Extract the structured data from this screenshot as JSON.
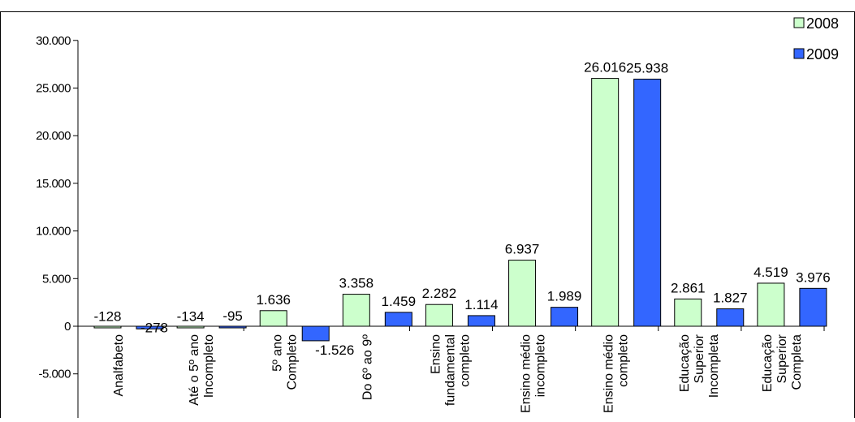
{
  "chart_data": {
    "type": "bar",
    "title": "",
    "xlabel": "",
    "ylabel": "",
    "ylim": [
      -5000,
      30000
    ],
    "y_ticks": [
      "-5.000",
      "0",
      "5.000",
      "10.000",
      "15.000",
      "20.000",
      "25.000",
      "30.000"
    ],
    "y_tick_values": [
      -5000,
      0,
      5000,
      10000,
      15000,
      20000,
      25000,
      30000
    ],
    "categories": [
      "Analfabeto",
      "Até o 5º ano Incompleto",
      "5º ano Completo",
      "Do 6º ao 9º",
      "Ensino fundamental completo",
      "Ensino médio incompleto",
      "Ensino médio completo",
      "Educação Superior Incompleta",
      "Educação Superior Completa"
    ],
    "category_lines": [
      [
        "Analfabeto"
      ],
      [
        "Até o 5º ano",
        "Incompleto"
      ],
      [
        "5º ano",
        "Completo"
      ],
      [
        "Do 6º ao 9º"
      ],
      [
        "Ensino",
        "fundamental",
        "completo"
      ],
      [
        "Ensino médio",
        "incompleto"
      ],
      [
        "Ensino médio",
        "completo"
      ],
      [
        "Educação",
        "Superior",
        "Incompleta"
      ],
      [
        "Educação",
        "Superior",
        "Completa"
      ]
    ],
    "series": [
      {
        "name": "2008",
        "color": "#ccffcc",
        "values": [
          -128,
          -134,
          1636,
          3358,
          2282,
          6937,
          26016,
          2861,
          4519
        ],
        "labels": [
          "-128",
          "-134",
          "1.636",
          "3.358",
          "2.282",
          "6.937",
          "26.016",
          "2.861",
          "4.519"
        ]
      },
      {
        "name": "2009",
        "color": "#3366ff",
        "values": [
          -278,
          -95,
          -1526,
          1459,
          1114,
          1989,
          25938,
          1827,
          3976
        ],
        "labels": [
          "-278",
          "-95",
          "-1.526",
          "1.459",
          "1.114",
          "1.989",
          "25.938",
          "1.827",
          "3.976"
        ]
      }
    ],
    "legend": "top-right",
    "grid": false
  }
}
